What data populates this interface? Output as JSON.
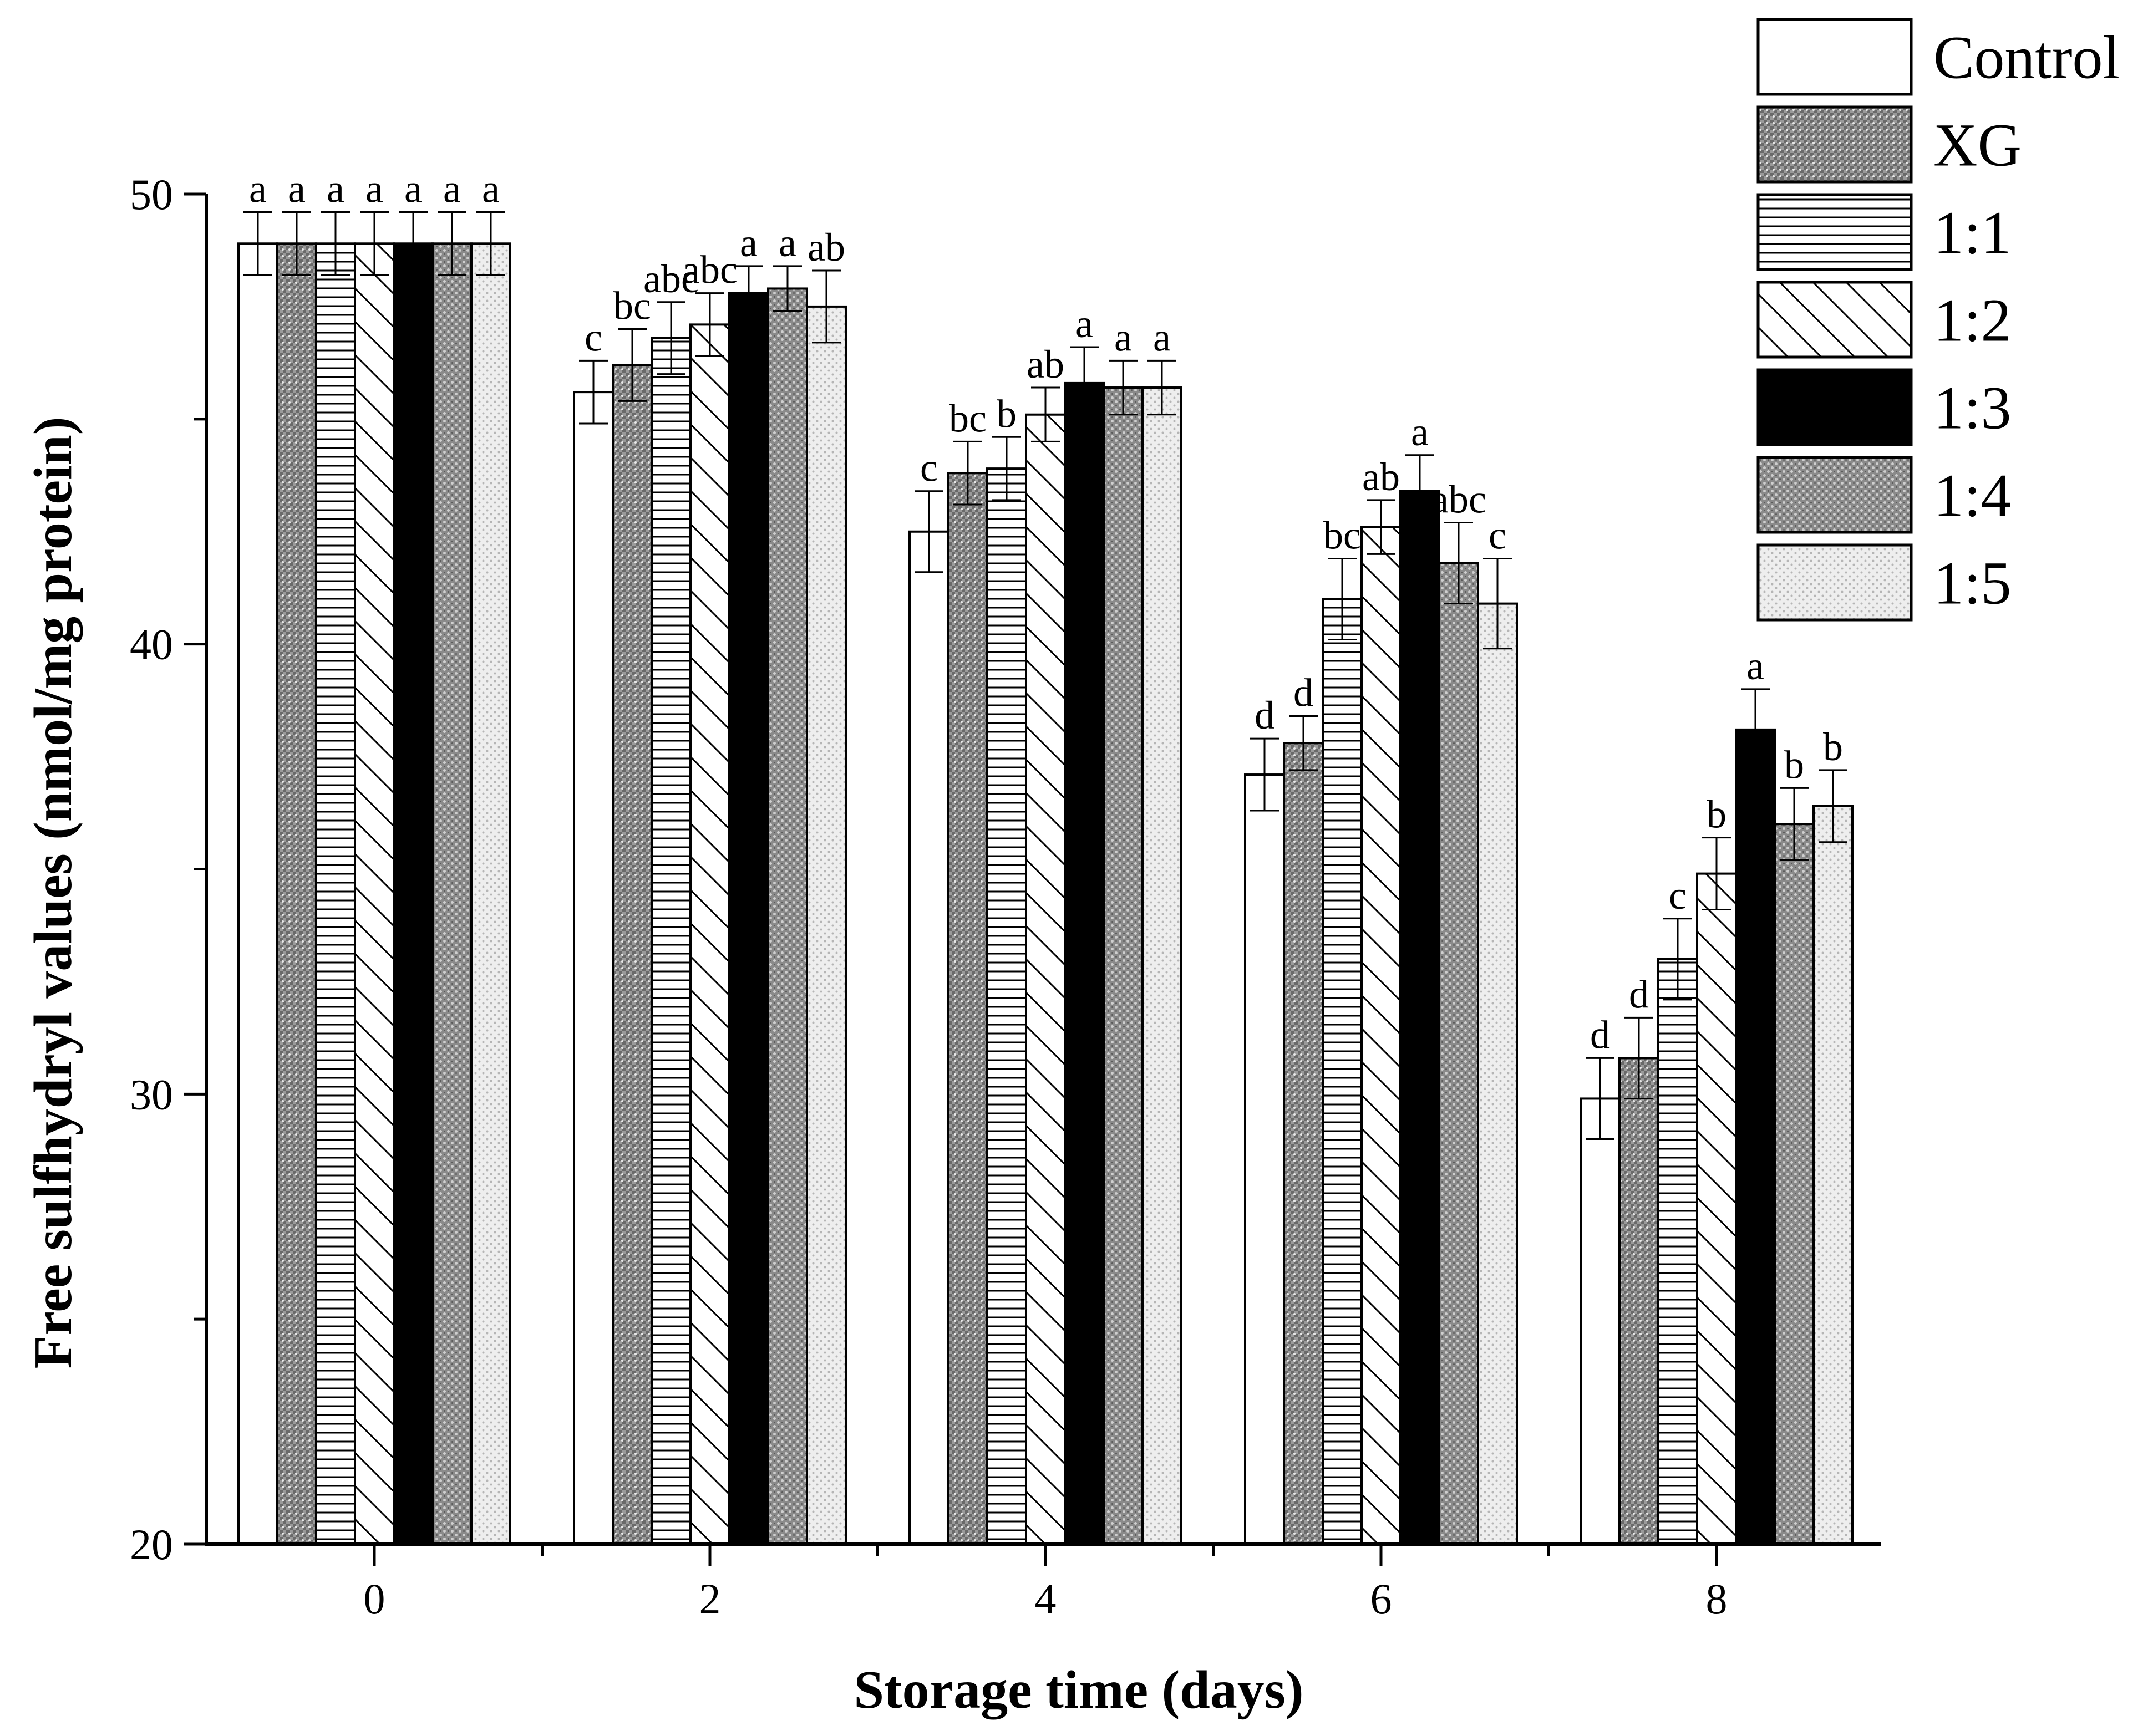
{
  "chart_data": {
    "type": "bar",
    "title": "",
    "xlabel": "Storage time (days)",
    "ylabel": "Free sulfhydryl values (nmol/mg protein)",
    "ylim": [
      20,
      50
    ],
    "yticks": [
      "20",
      "30",
      "40",
      "50"
    ],
    "categories": [
      "0",
      "2",
      "4",
      "6",
      "8"
    ],
    "legend_position": "top-right",
    "series": [
      {
        "name": "Control",
        "pattern": "white",
        "values": [
          48.9,
          45.6,
          42.5,
          37.1,
          29.9
        ],
        "errors": [
          0.7,
          0.7,
          0.9,
          0.8,
          0.9
        ],
        "labels": [
          "a",
          "c",
          "c",
          "d",
          "d"
        ]
      },
      {
        "name": "XG",
        "pattern": "dense-dots",
        "values": [
          48.9,
          46.2,
          43.8,
          37.8,
          30.8
        ],
        "errors": [
          0.7,
          0.8,
          0.7,
          0.6,
          0.9
        ],
        "labels": [
          "a",
          "bc",
          "bc",
          "d",
          "d"
        ]
      },
      {
        "name": "1:1",
        "pattern": "horizontal-lines",
        "values": [
          48.9,
          46.8,
          43.9,
          41.0,
          33.0
        ],
        "errors": [
          0.7,
          0.8,
          0.7,
          0.9,
          0.9
        ],
        "labels": [
          "a",
          "abc",
          "b",
          "bc",
          "c"
        ]
      },
      {
        "name": "1:2",
        "pattern": "diagonal-lines",
        "values": [
          48.9,
          47.1,
          45.1,
          42.6,
          34.9
        ],
        "errors": [
          0.7,
          0.7,
          0.6,
          0.6,
          0.8
        ],
        "labels": [
          "a",
          "abc",
          "ab",
          "ab",
          "b"
        ]
      },
      {
        "name": "1:3",
        "pattern": "black",
        "values": [
          48.9,
          47.8,
          45.8,
          43.4,
          38.1
        ],
        "errors": [
          0.7,
          0.6,
          0.8,
          0.8,
          0.9
        ],
        "labels": [
          "a",
          "a",
          "a",
          "a",
          "a"
        ]
      },
      {
        "name": "1:4",
        "pattern": "grey-dots",
        "values": [
          48.9,
          47.9,
          45.7,
          41.8,
          36.0
        ],
        "errors": [
          0.7,
          0.5,
          0.6,
          0.9,
          0.8
        ],
        "labels": [
          "a",
          "a",
          "a",
          "abc",
          "b"
        ]
      },
      {
        "name": "1:5",
        "pattern": "light-dots",
        "values": [
          48.9,
          47.5,
          45.7,
          40.9,
          36.4
        ],
        "errors": [
          0.7,
          0.8,
          0.6,
          1.0,
          0.8
        ],
        "labels": [
          "a",
          "ab",
          "a",
          "c",
          "b"
        ]
      }
    ]
  }
}
